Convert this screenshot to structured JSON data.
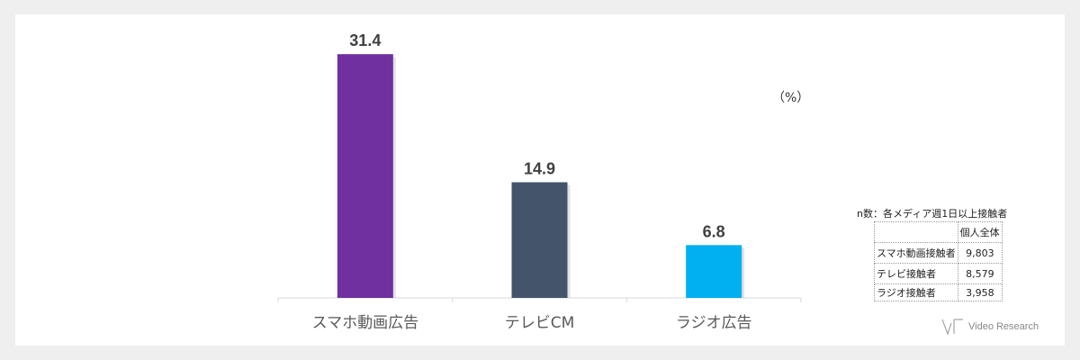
{
  "chart_data": {
    "type": "bar",
    "categories": [
      "スマホ動画広告",
      "テレビCM",
      "ラジオ広告"
    ],
    "values": [
      31.4,
      14.9,
      6.8
    ],
    "data_labels": [
      "31.4",
      "14.9",
      "6.8"
    ],
    "colors": [
      "#7030a0",
      "#44546a",
      "#00b0f0"
    ],
    "unit": "（%）",
    "ylim": [
      0,
      32
    ],
    "grid": false,
    "legend": "none"
  },
  "sample_table": {
    "title": "n数：各メディア週1日以上接触者",
    "header": [
      "",
      "個人全体"
    ],
    "rows": [
      {
        "label": "スマホ動画接触者",
        "value": "9,803"
      },
      {
        "label": "テレビ接触者",
        "value": "8,579"
      },
      {
        "label": "ラジオ接触者",
        "value": "3,958"
      }
    ]
  },
  "logo": {
    "text": "Video Research",
    "icon": "videoresearch-logo-icon"
  }
}
